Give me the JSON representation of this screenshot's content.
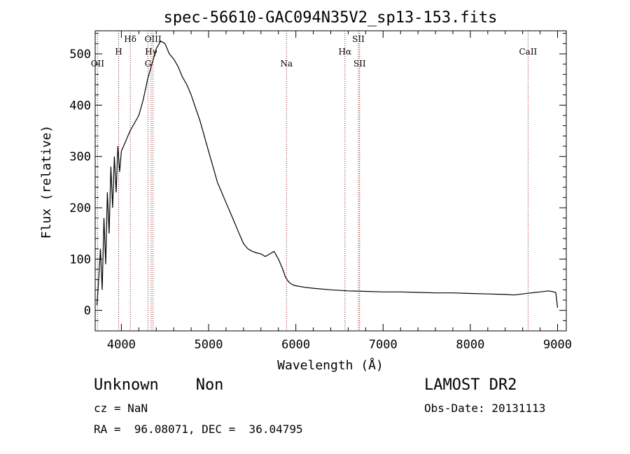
{
  "chart_data": {
    "type": "line",
    "title": "spec-56610-GAC094N35V2_sp13-153.fits",
    "xlabel": "Wavelength (Å)",
    "ylabel": "Flux (relative)",
    "xlim": [
      3700,
      9100
    ],
    "ylim": [
      -40,
      545
    ],
    "xticks": [
      4000,
      5000,
      6000,
      7000,
      8000,
      9000
    ],
    "yticks": [
      0,
      100,
      200,
      300,
      400,
      500
    ],
    "grid": false,
    "line_color": "#000000",
    "marker_color": "#8b1a1a",
    "series": [
      {
        "x": [
          3720,
          3740,
          3760,
          3780,
          3800,
          3820,
          3840,
          3860,
          3880,
          3900,
          3920,
          3940,
          3960,
          3980,
          4000,
          4050,
          4100,
          4150,
          4200,
          4250,
          4300,
          4350,
          4400,
          4450,
          4500,
          4550,
          4600,
          4650,
          4700,
          4750,
          4800,
          4850,
          4900,
          4950,
          5000,
          5050,
          5100,
          5150,
          5200,
          5250,
          5300,
          5350,
          5400,
          5450,
          5500,
          5550,
          5600,
          5650,
          5700,
          5750,
          5800,
          5850,
          5880,
          5920,
          5960,
          6000,
          6100,
          6200,
          6400,
          6600,
          6800,
          7000,
          7200,
          7400,
          7600,
          7800,
          8000,
          8200,
          8400,
          8500,
          8600,
          8700,
          8800,
          8900,
          8980,
          9000
        ],
        "y": [
          10,
          60,
          120,
          40,
          180,
          90,
          230,
          150,
          280,
          200,
          300,
          230,
          320,
          270,
          310,
          330,
          350,
          365,
          380,
          410,
          450,
          480,
          510,
          525,
          520,
          500,
          490,
          475,
          455,
          440,
          420,
          395,
          370,
          340,
          310,
          280,
          250,
          230,
          210,
          190,
          170,
          150,
          130,
          120,
          115,
          112,
          110,
          105,
          110,
          115,
          100,
          80,
          65,
          55,
          50,
          48,
          45,
          43,
          40,
          38,
          37,
          36,
          36,
          35,
          34,
          34,
          33,
          32,
          31,
          30,
          32,
          34,
          36,
          38,
          35,
          5
        ]
      }
    ],
    "lines": [
      {
        "label": "OII",
        "x": 3727,
        "level": 2
      },
      {
        "label": "H",
        "x": 3969,
        "level": 1
      },
      {
        "label": "Hδ",
        "x": 4102,
        "level": 0
      },
      {
        "label": "G",
        "x": 4305,
        "level": 2
      },
      {
        "label": "Hγ",
        "x": 4341,
        "level": 1
      },
      {
        "label": "OIII",
        "x": 4363,
        "level": 0
      },
      {
        "label": "Na",
        "x": 5893,
        "level": 2
      },
      {
        "label": "Hα",
        "x": 6563,
        "level": 1
      },
      {
        "label": "SII",
        "x": 6717,
        "level": 0
      },
      {
        "label": "SII",
        "x": 6731,
        "level": 2
      },
      {
        "label": "CaII",
        "x": 8662,
        "level": 1
      }
    ]
  },
  "info": {
    "classification": "Unknown    Non",
    "cz": "cz = NaN",
    "radec": "RA =  96.08071, DEC =  36.04795",
    "survey": "LAMOST DR2",
    "obs_date": "Obs-Date: 20131113"
  }
}
